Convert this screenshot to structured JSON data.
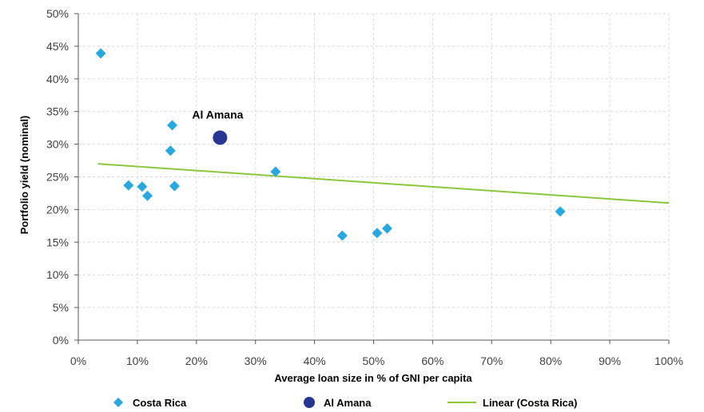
{
  "chart_data": {
    "type": "scatter",
    "xlabel": "Average loan size in % of GNI per capita",
    "ylabel": "Portfolio yield (nominal)",
    "xlim": [
      0,
      100
    ],
    "ylim": [
      0,
      50
    ],
    "x_ticks": [
      "0%",
      "10%",
      "20%",
      "30%",
      "40%",
      "50%",
      "60%",
      "70%",
      "80%",
      "90%",
      "100%"
    ],
    "y_ticks": [
      "0%",
      "5%",
      "10%",
      "15%",
      "20%",
      "25%",
      "30%",
      "35%",
      "40%",
      "45%",
      "50%"
    ],
    "grid": true,
    "legend_position": "bottom",
    "series": [
      {
        "name": "Costa Rica",
        "marker": "diamond",
        "color": "#29a8e0",
        "points": [
          {
            "x": 3.8,
            "y": 43.9
          },
          {
            "x": 8.5,
            "y": 23.7
          },
          {
            "x": 10.8,
            "y": 23.5
          },
          {
            "x": 11.7,
            "y": 22.1
          },
          {
            "x": 15.6,
            "y": 29.0
          },
          {
            "x": 15.9,
            "y": 32.9
          },
          {
            "x": 16.3,
            "y": 23.6
          },
          {
            "x": 33.4,
            "y": 25.8
          },
          {
            "x": 44.7,
            "y": 16.0
          },
          {
            "x": 50.6,
            "y": 16.4
          },
          {
            "x": 52.3,
            "y": 17.1
          },
          {
            "x": 81.6,
            "y": 19.7
          }
        ]
      },
      {
        "name": "Al Amana",
        "marker": "circle",
        "color": "#283592",
        "points": [
          {
            "x": 24.0,
            "y": 31.0
          }
        ]
      },
      {
        "name": "Linear (Costa Rica)",
        "marker": "line",
        "color": "#8cc63f",
        "points": [
          {
            "x": 3.3,
            "y": 27.0
          },
          {
            "x": 100,
            "y": 21.0
          }
        ]
      }
    ],
    "annotations": [
      {
        "text": "Al Amana",
        "x": 24.0,
        "y": 31.0
      }
    ]
  }
}
